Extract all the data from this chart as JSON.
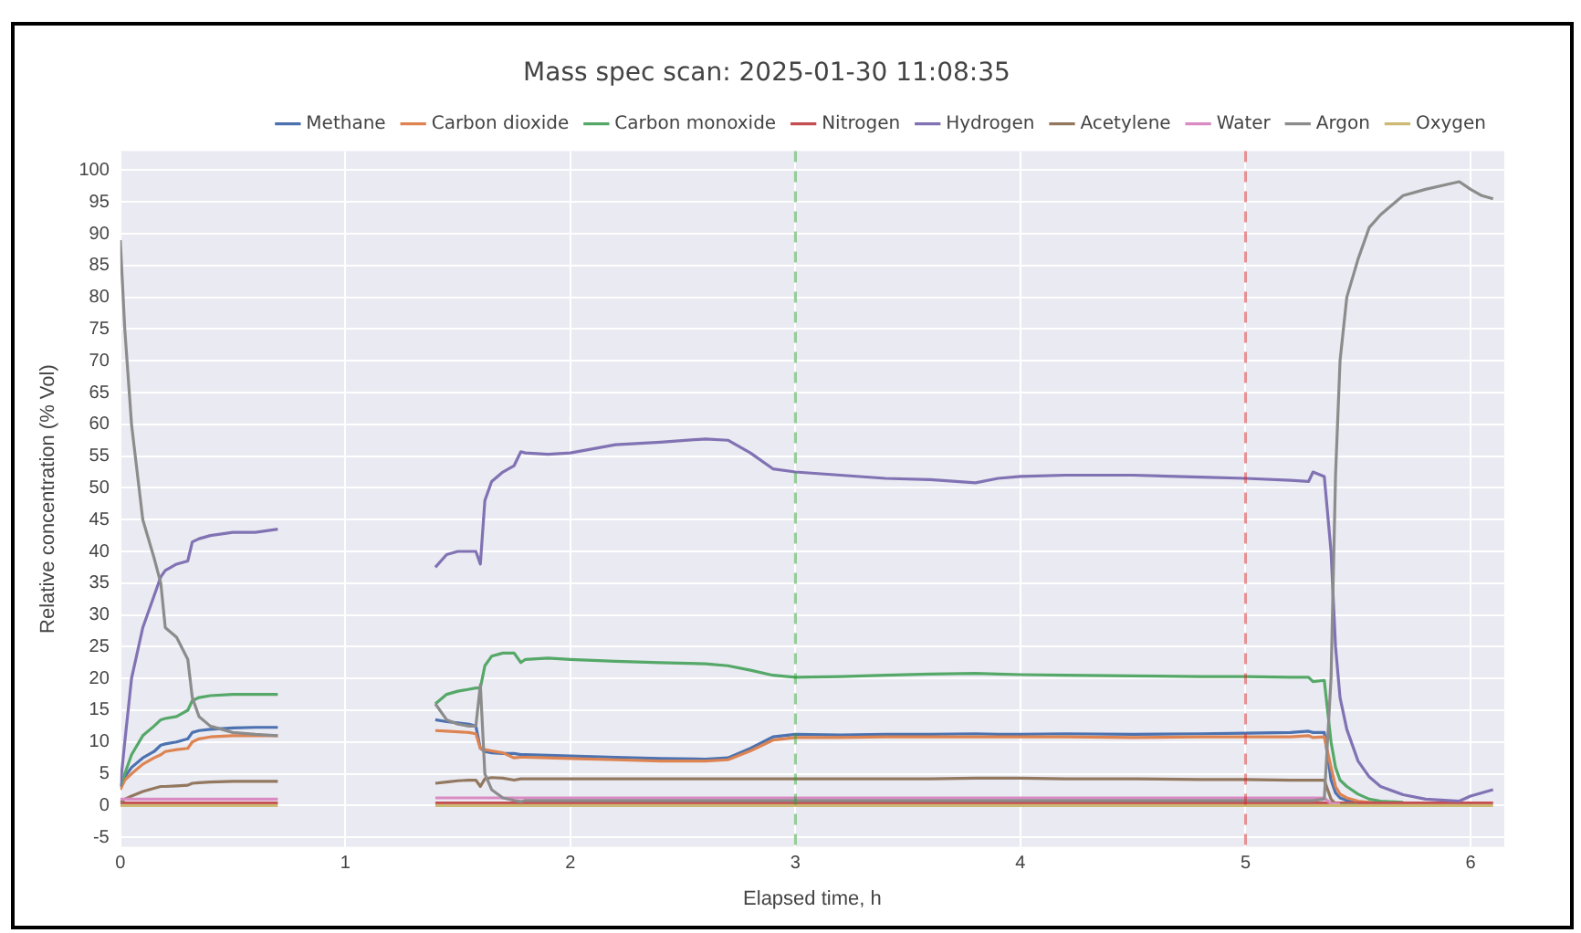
{
  "chart_data": {
    "type": "line",
    "title": "Mass spec scan: 2025-01-30 11:08:35",
    "xlabel": "Elapsed time, h",
    "ylabel": "Relative concentration (% Vol)",
    "x": [
      0,
      0.02,
      0.05,
      0.1,
      0.15,
      0.18,
      0.2,
      0.25,
      0.3,
      0.32,
      0.35,
      0.4,
      0.5,
      0.6,
      0.7,
      1.0,
      1.4,
      1.45,
      1.5,
      1.55,
      1.58,
      1.6,
      1.62,
      1.65,
      1.7,
      1.75,
      1.78,
      1.8,
      1.9,
      2.0,
      2.2,
      2.4,
      2.6,
      2.7,
      2.8,
      2.9,
      3.0,
      3.2,
      3.4,
      3.6,
      3.8,
      3.9,
      4.0,
      4.2,
      4.5,
      4.8,
      5.0,
      5.2,
      5.28,
      5.3,
      5.35,
      5.38,
      5.4,
      5.42,
      5.45,
      5.5,
      5.55,
      5.6,
      5.7,
      5.8,
      5.9,
      5.95,
      6.0,
      6.05,
      6.1
    ],
    "series": [
      {
        "name": "Methane",
        "color": "#4c72b0",
        "values": [
          3,
          4.5,
          6,
          7.5,
          8.5,
          9.5,
          9.7,
          10,
          10.5,
          11.5,
          11.8,
          12,
          12.2,
          12.3,
          12.3,
          null,
          13.5,
          13.2,
          13,
          12.8,
          12.5,
          9,
          8.5,
          8.3,
          8.2,
          8.2,
          8,
          8,
          7.9,
          7.8,
          7.6,
          7.4,
          7.3,
          7.5,
          9,
          10.8,
          11.2,
          11.1,
          11.2,
          11.2,
          11.3,
          11.2,
          11.2,
          11.3,
          11.2,
          11.3,
          11.4,
          11.5,
          11.7,
          11.5,
          11.5,
          4,
          2,
          1.2,
          0.8,
          0.5,
          0.3,
          0.3,
          null,
          null,
          null,
          null,
          null,
          null,
          null
        ]
      },
      {
        "name": "Carbon dioxide",
        "color": "#dd8452",
        "values": [
          2.5,
          4,
          5,
          6.5,
          7.5,
          8,
          8.5,
          8.8,
          9,
          10,
          10.5,
          10.8,
          11,
          11,
          11,
          null,
          11.8,
          11.7,
          11.6,
          11.5,
          11.3,
          9,
          8.8,
          8.6,
          8.3,
          7.5,
          7.6,
          7.6,
          7.5,
          7.4,
          7.2,
          7,
          7,
          7.2,
          8.6,
          10.3,
          10.7,
          10.7,
          10.8,
          10.8,
          10.8,
          10.8,
          10.8,
          10.8,
          10.7,
          10.8,
          10.8,
          10.8,
          11,
          10.7,
          10.8,
          6,
          3,
          1.8,
          1.2,
          0.7,
          0.5,
          0.3,
          null,
          null,
          null,
          null,
          null,
          null,
          null
        ]
      },
      {
        "name": "Carbon monoxide",
        "color": "#55a868",
        "values": [
          3,
          5,
          8,
          11,
          12.5,
          13.5,
          13.7,
          14,
          15,
          16.5,
          17,
          17.3,
          17.5,
          17.5,
          17.5,
          null,
          16,
          17.5,
          18,
          18.3,
          18.5,
          18.5,
          22,
          23.5,
          24,
          24,
          22.5,
          23,
          23.2,
          23,
          22.7,
          22.5,
          22.3,
          22,
          21.3,
          20.5,
          20.2,
          20.3,
          20.5,
          20.7,
          20.8,
          20.7,
          20.6,
          20.5,
          20.4,
          20.3,
          20.3,
          20.2,
          20.2,
          19.5,
          19.7,
          10,
          6,
          4,
          3,
          1.8,
          1,
          0.7,
          0.5,
          null,
          null,
          null,
          null,
          null,
          null
        ]
      },
      {
        "name": "Nitrogen",
        "color": "#c44e52",
        "values": [
          0.4,
          0.4,
          0.4,
          0.4,
          0.4,
          0.4,
          0.4,
          0.4,
          0.4,
          0.4,
          0.4,
          0.4,
          0.4,
          0.4,
          0.4,
          null,
          0.4,
          0.4,
          0.4,
          0.4,
          0.4,
          0.4,
          0.4,
          0.4,
          0.4,
          0.4,
          0.4,
          0.4,
          0.4,
          0.4,
          0.4,
          0.4,
          0.4,
          0.4,
          0.4,
          0.4,
          0.4,
          0.4,
          0.4,
          0.4,
          0.4,
          0.4,
          0.4,
          0.4,
          0.4,
          0.4,
          0.4,
          0.4,
          0.4,
          0.4,
          0.4,
          0.4,
          0.4,
          0.4,
          0.4,
          0.4,
          0.4,
          0.4,
          0.4,
          0.4,
          0.4,
          0.4,
          0.4,
          0.4,
          0.4
        ]
      },
      {
        "name": "Hydrogen",
        "color": "#8172b3",
        "values": [
          3,
          10,
          20,
          28,
          33,
          36,
          37,
          38,
          38.5,
          41.5,
          42,
          42.5,
          43,
          43,
          43.5,
          null,
          37.5,
          39.5,
          40,
          40,
          40,
          38,
          48,
          51,
          52.5,
          53.5,
          55.7,
          55.5,
          55.3,
          55.5,
          56.8,
          57.2,
          57.7,
          57.5,
          55.5,
          53,
          52.5,
          52,
          51.5,
          51.3,
          50.8,
          51.5,
          51.8,
          52,
          52,
          51.7,
          51.5,
          51.2,
          51,
          52.5,
          51.8,
          40,
          25,
          17,
          12,
          7,
          4.5,
          3,
          1.7,
          1,
          0.8,
          0.7,
          1.5,
          2,
          2.5
        ]
      },
      {
        "name": "Acetylene",
        "color": "#937860",
        "values": [
          0.5,
          1,
          1.5,
          2.2,
          2.7,
          3,
          3,
          3.1,
          3.2,
          3.5,
          3.6,
          3.7,
          3.8,
          3.8,
          3.8,
          null,
          3.5,
          3.7,
          3.9,
          4,
          4,
          3,
          4.2,
          4.4,
          4.3,
          4,
          4.2,
          4.2,
          4.2,
          4.2,
          4.2,
          4.2,
          4.2,
          4.2,
          4.2,
          4.2,
          4.2,
          4.2,
          4.2,
          4.2,
          4.3,
          4.3,
          4.3,
          4.2,
          4.2,
          4.1,
          4.1,
          4,
          4,
          4,
          4,
          1,
          0.3,
          0.2,
          0.2,
          0.2,
          null,
          null,
          null,
          null,
          null,
          null,
          null,
          null,
          null
        ]
      },
      {
        "name": "Water",
        "color": "#da8bc3",
        "values": [
          1,
          1,
          1,
          1,
          1,
          1,
          1,
          1,
          1,
          1,
          1,
          1,
          1,
          1,
          1,
          null,
          1.2,
          1.2,
          1.2,
          1.2,
          1.2,
          1.2,
          1.2,
          1.2,
          1.2,
          1.2,
          1.2,
          1.2,
          1.2,
          1.2,
          1.2,
          1.2,
          1.2,
          1.2,
          1.2,
          1.2,
          1.2,
          1.2,
          1.2,
          1.2,
          1.2,
          1.2,
          1.2,
          1.2,
          1.2,
          1.2,
          1.2,
          1.2,
          1.2,
          1.2,
          1.2,
          0.3,
          0.3,
          0.3,
          null,
          null,
          null,
          null,
          null,
          null,
          null,
          null,
          null,
          null,
          null
        ]
      },
      {
        "name": "Argon",
        "color": "#8c8c8c",
        "values": [
          89,
          75,
          60,
          45,
          39,
          35,
          28,
          26.5,
          23,
          17,
          14,
          12.5,
          11.5,
          11.2,
          11,
          null,
          16,
          13.5,
          12.8,
          12.5,
          12.5,
          19,
          5,
          2.5,
          1.2,
          0.8,
          0.6,
          0.8,
          0.8,
          0.8,
          0.8,
          0.8,
          0.8,
          0.8,
          0.8,
          0.8,
          0.8,
          0.8,
          0.8,
          0.8,
          0.8,
          0.8,
          0.8,
          0.8,
          0.8,
          0.8,
          0.8,
          0.8,
          0.8,
          0.8,
          1,
          20,
          52,
          70,
          80,
          86,
          91,
          93,
          96,
          97,
          97.8,
          98.2,
          97,
          96,
          95.5
        ]
      },
      {
        "name": "Oxygen",
        "color": "#ccb974",
        "values": [
          0,
          0,
          0,
          0,
          0,
          0,
          0,
          0,
          0,
          0,
          0,
          0,
          0,
          0,
          0,
          null,
          0,
          0,
          0,
          0,
          0,
          0,
          0,
          0,
          0,
          0,
          0,
          0,
          0,
          0,
          0,
          0,
          0,
          0,
          0,
          0,
          0,
          0,
          0,
          0,
          0,
          0,
          0,
          0,
          0,
          0,
          0,
          0,
          0,
          0,
          0,
          0,
          0,
          0,
          0,
          0,
          0,
          0,
          0,
          0,
          0,
          0,
          0,
          0,
          0
        ]
      }
    ],
    "xlim": [
      0,
      6.15
    ],
    "xticks": [
      0,
      1,
      2,
      3,
      4,
      5,
      6
    ],
    "ylim": [
      -6.5,
      103
    ],
    "yticks": [
      -5,
      0,
      5,
      10,
      15,
      20,
      25,
      30,
      35,
      40,
      45,
      50,
      55,
      60,
      65,
      70,
      75,
      80,
      85,
      90,
      95,
      100
    ],
    "ref_lines": [
      {
        "axis": "x",
        "value": 3,
        "color": "#2ca02c",
        "line_style": "dashed"
      },
      {
        "axis": "x",
        "value": 5,
        "color": "#d62728",
        "line_style": "dashed"
      }
    ],
    "grid": true,
    "legend": "top right",
    "marker": "none",
    "line_style": "solid"
  }
}
